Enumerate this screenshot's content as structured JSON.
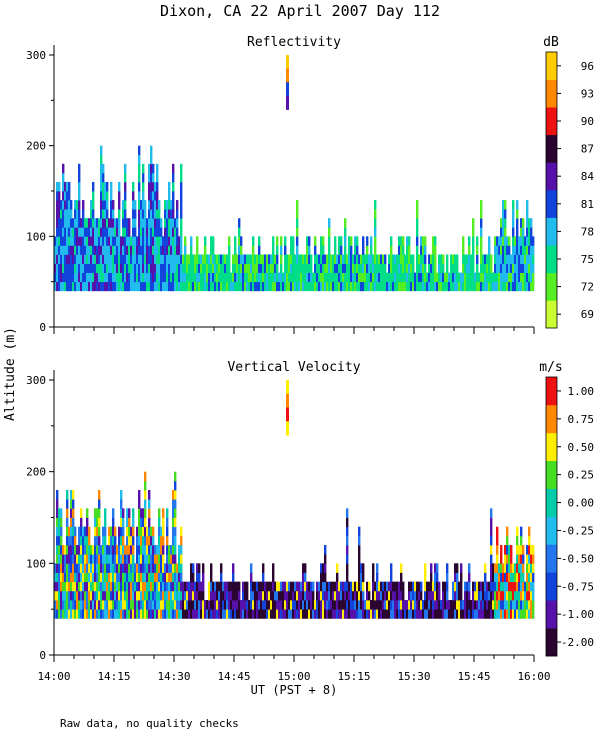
{
  "title": "Dixon, CA 22 April 2007  Day 112",
  "footnote": "Raw data, no quality checks",
  "chart_data": [
    {
      "type": "heatmap",
      "title": "Reflectivity",
      "ylabel": "Altitude (m)",
      "xlabel": "UT  (PST + 8)",
      "x_ticks": [
        "14:00",
        "14:15",
        "14:30",
        "14:45",
        "15:00",
        "15:15",
        "15:30",
        "15:45",
        "16:00"
      ],
      "y_ticks": [
        0,
        100,
        200,
        300
      ],
      "ylim": [
        0,
        300
      ],
      "xlim_minutes": [
        0,
        120
      ],
      "colorbar": {
        "unit": "dB",
        "labels": [
          "69",
          "72",
          "75",
          "78",
          "81",
          "84",
          "87",
          "90",
          "93",
          "96"
        ],
        "colors": [
          "#ccff33",
          "#55ee22",
          "#00dd88",
          "#22bbee",
          "#1144dd",
          "#5511aa",
          "#2a0530",
          "#ee1111",
          "#ff8800",
          "#ffcc00"
        ]
      },
      "segments": [
        {
          "start_min": 0,
          "end_min": 32,
          "alt_min_m": 40,
          "alt_max_m": 180,
          "peak_alt_m": 220,
          "dominant": "78-81 dB"
        },
        {
          "start_min": 32,
          "end_min": 110,
          "alt_min_m": 40,
          "alt_max_m": 100,
          "dominant": "72-78 dB"
        },
        {
          "start_min": 110,
          "end_min": 120,
          "alt_min_m": 40,
          "alt_max_m": 140,
          "dominant": "75-81 dB"
        },
        {
          "start_min": 58,
          "end_min": 59,
          "alt_min_m": 240,
          "alt_max_m": 300,
          "dominant": "81-96 dB"
        }
      ]
    },
    {
      "type": "heatmap",
      "title": "Vertical Velocity",
      "ylabel": "Altitude (m)",
      "xlabel": "UT  (PST + 8)",
      "x_ticks": [
        "14:00",
        "14:15",
        "14:30",
        "14:45",
        "15:00",
        "15:15",
        "15:30",
        "15:45",
        "16:00"
      ],
      "y_ticks": [
        0,
        100,
        200,
        300
      ],
      "ylim": [
        0,
        300
      ],
      "xlim_minutes": [
        0,
        120
      ],
      "colorbar": {
        "unit": "m/s",
        "labels": [
          "-2.00",
          "-1.00",
          "-0.75",
          "-0.50",
          "-0.25",
          "0.00",
          "0.25",
          "0.50",
          "0.75",
          "1.00"
        ],
        "colors": [
          "#2a0530",
          "#5511aa",
          "#1144dd",
          "#2277ee",
          "#22bbee",
          "#00ccaa",
          "#44dd22",
          "#ffee00",
          "#ff8800",
          "#ee1111"
        ]
      },
      "segments": [
        {
          "start_min": 0,
          "end_min": 32,
          "alt_min_m": 40,
          "alt_max_m": 180,
          "peak_alt_m": 220,
          "dominant": "-0.50 to 0.50 m/s"
        },
        {
          "start_min": 32,
          "end_min": 110,
          "alt_min_m": 40,
          "alt_max_m": 100,
          "dominant": "-2.00 to -0.50 m/s"
        },
        {
          "start_min": 110,
          "end_min": 120,
          "alt_min_m": 40,
          "alt_max_m": 140,
          "dominant": "0.25 to 1.00 m/s"
        },
        {
          "start_min": 58,
          "end_min": 59,
          "alt_min_m": 240,
          "alt_max_m": 300,
          "dominant": "0.50 to 1.00 m/s"
        }
      ]
    }
  ]
}
